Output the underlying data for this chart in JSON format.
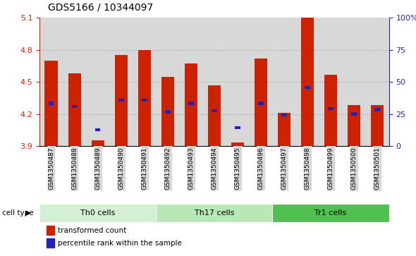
{
  "title": "GDS5166 / 10344097",
  "samples": [
    "GSM1350487",
    "GSM1350488",
    "GSM1350489",
    "GSM1350490",
    "GSM1350491",
    "GSM1350492",
    "GSM1350493",
    "GSM1350494",
    "GSM1350495",
    "GSM1350496",
    "GSM1350497",
    "GSM1350498",
    "GSM1350499",
    "GSM1350500",
    "GSM1350501"
  ],
  "red_values": [
    4.7,
    4.58,
    3.95,
    4.75,
    4.8,
    4.55,
    4.67,
    4.47,
    3.93,
    4.72,
    4.21,
    5.1,
    4.57,
    4.28,
    4.28
  ],
  "blue_values": [
    4.3,
    4.27,
    4.05,
    4.33,
    4.33,
    4.22,
    4.3,
    4.23,
    4.07,
    4.3,
    4.19,
    4.45,
    4.25,
    4.2,
    4.24
  ],
  "ylim": [
    3.9,
    5.1
  ],
  "yticks_left": [
    3.9,
    4.2,
    4.5,
    4.8,
    5.1
  ],
  "yticks_right": [
    0,
    25,
    50,
    75,
    100
  ],
  "cell_groups": [
    {
      "label": "Th0 cells",
      "start": 0,
      "end": 4,
      "color": "#d4f0d4"
    },
    {
      "label": "Th17 cells",
      "start": 5,
      "end": 9,
      "color": "#b8e8b8"
    },
    {
      "label": "Tr1 cells",
      "start": 10,
      "end": 14,
      "color": "#50c050"
    }
  ],
  "bar_color": "#cc2200",
  "blue_color": "#2222bb",
  "bar_width": 0.55,
  "col_bg_color": "#d8d8d8",
  "plot_bg_color": "#ffffff",
  "cell_type_label": "cell type",
  "legend_red_label": "transformed count",
  "legend_blue_label": "percentile rank within the sample",
  "left_axis_color": "#cc2200",
  "right_axis_color": "#2222bb",
  "grid_yticks": [
    4.2,
    4.5,
    4.8
  ]
}
